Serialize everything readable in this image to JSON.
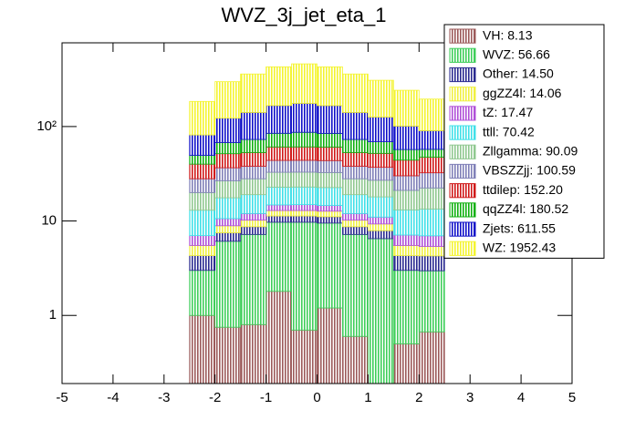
{
  "chart_data": {
    "type": "stacked_histogram",
    "title": "WVZ_3j_jet_eta_1",
    "bins": [
      -2.5,
      -2,
      -1.5,
      -1,
      -0.5,
      0,
      0.5,
      1,
      1.5,
      2,
      2.5
    ],
    "xlim": [
      -5,
      5
    ],
    "xticks": [
      -5,
      -4,
      -3,
      -2,
      -1,
      0,
      1,
      2,
      3,
      4,
      5
    ],
    "ylim": [
      0.19,
      770
    ],
    "yticks": [
      1,
      10,
      {
        "value": 100,
        "label": "10²"
      }
    ],
    "ylog": true,
    "legend": "top-right",
    "series": [
      {
        "name": "VH: 8.13",
        "color": "#9c5a5a",
        "values": [
          1.0,
          0.75,
          0.8,
          1.8,
          0.7,
          1.2,
          0.6,
          0,
          0.5,
          0.67
        ]
      },
      {
        "name": "WVZ: 56.66",
        "color": "#3fce5a",
        "values": [
          2.0,
          5.35,
          6.4,
          7.9,
          9.0,
          8.3,
          6.6,
          6.5,
          2.5,
          2.3
        ]
      },
      {
        "name": "Other: 14.50",
        "color": "#2a2a90",
        "values": [
          1.3,
          1.4,
          1.5,
          1.6,
          1.6,
          1.6,
          1.5,
          1.4,
          1.3,
          1.3
        ]
      },
      {
        "name": "ggZZ4l: 14.06",
        "color": "#f0f040",
        "values": [
          1.2,
          1.4,
          1.5,
          1.6,
          1.6,
          1.6,
          1.5,
          1.4,
          1.2,
          1.1
        ]
      },
      {
        "name": "tZ: 17.47",
        "color": "#b050d8",
        "values": [
          1.5,
          1.7,
          1.8,
          1.9,
          2.0,
          1.9,
          1.8,
          1.7,
          1.6,
          1.6
        ]
      },
      {
        "name": "ttll: 70.42",
        "color": "#40e0e8",
        "values": [
          6,
          7,
          7,
          8,
          8,
          8,
          7,
          7,
          6,
          6.4
        ]
      },
      {
        "name": "Zllgamma: 90.09",
        "color": "#90c890",
        "values": [
          7,
          9,
          9,
          10,
          10,
          10,
          9,
          9,
          8,
          9
        ]
      },
      {
        "name": "VBSZZjj: 100.59",
        "color": "#8080b8",
        "values": [
          8,
          10,
          10,
          11,
          11,
          11,
          10,
          10,
          9,
          10
        ]
      },
      {
        "name": "ttdilep: 152.20",
        "color": "#d01818",
        "values": [
          12,
          15,
          15,
          17,
          17,
          17,
          15,
          15,
          14,
          15
        ]
      },
      {
        "name": "qqZZ4l: 180.52",
        "color": "#10b010",
        "values": [
          9.5,
          16,
          20,
          24,
          26,
          24,
          20,
          17,
          13,
          10
        ]
      },
      {
        "name": "Zjets: 611.55",
        "color": "#1010c8",
        "values": [
          32,
          55,
          68,
          82,
          89,
          82,
          68,
          57,
          44,
          33
        ]
      },
      {
        "name": "WZ: 1952.43",
        "color": "#f4f430",
        "values": [
          103,
          176,
          219,
          262,
          285,
          262,
          219,
          183,
          141,
          105
        ]
      }
    ]
  }
}
